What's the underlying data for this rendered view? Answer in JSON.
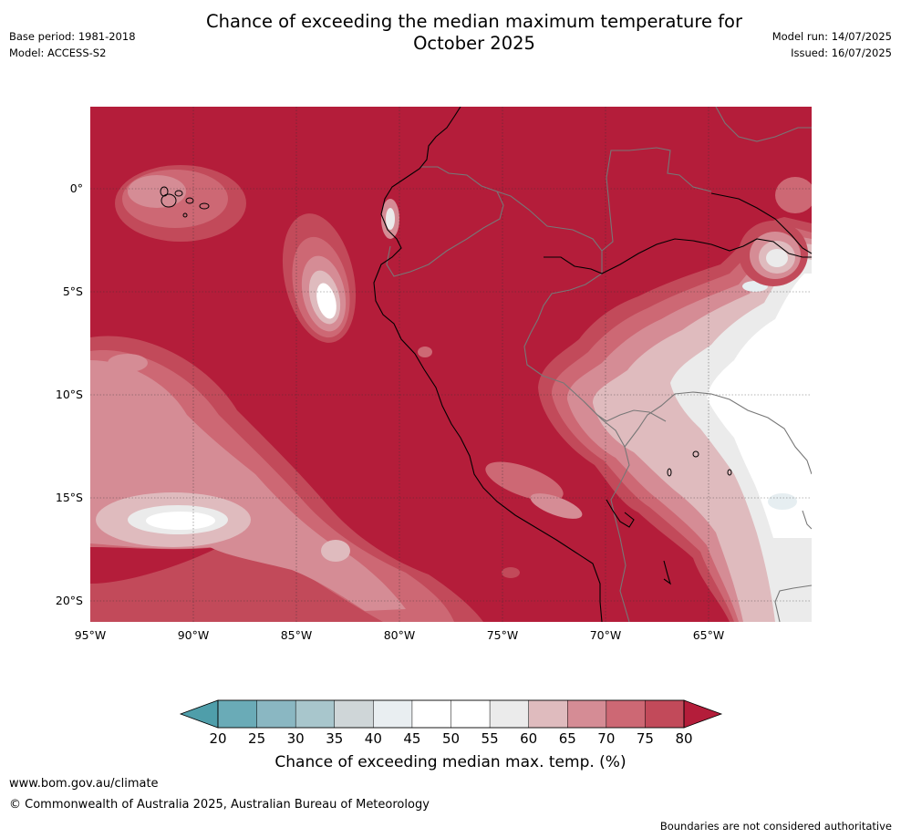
{
  "header": {
    "title_line1": "Chance of exceeding the median maximum temperature for",
    "title_line2": "October 2025",
    "base_period": "Base period: 1981-2018",
    "model": "Model: ACCESS-S2",
    "model_run": "Model run: 14/07/2025",
    "issued": "Issued: 16/07/2025"
  },
  "map": {
    "lat_labels": [
      "0°",
      "5°S",
      "10°S",
      "15°S",
      "20°S"
    ],
    "lon_labels": [
      "95°W",
      "90°W",
      "85°W",
      "80°W",
      "75°W",
      "70°W",
      "65°W"
    ],
    "lat_range": [
      -21.1,
      3.9
    ],
    "lon_range": [
      -95,
      -60
    ],
    "gridlines": true,
    "dominant_category": "80+",
    "colors": {
      "c80plus": "#b41d3a",
      "c75_80": "#c24a5a",
      "c70_75": "#cd6874",
      "c65_70": "#d58c95",
      "c60_65": "#dfbbbe",
      "c55_60": "#ebebeb",
      "c45_55": "#ffffff",
      "c40_45": "#e6eef1",
      "coast": "#000000",
      "border": "#777777"
    }
  },
  "colorbar": {
    "ticks": [
      "20",
      "25",
      "30",
      "35",
      "40",
      "45",
      "50",
      "55",
      "60",
      "65",
      "70",
      "75",
      "80"
    ],
    "colors": [
      "#6aabb7",
      "#8ab7c2",
      "#a8c6cc",
      "#cfd6d8",
      "#e9eef1",
      "#ffffff",
      "#ffffff",
      "#ebebeb",
      "#dfbbbe",
      "#d58c95",
      "#cd6874",
      "#c24a5a"
    ],
    "under_color": "#4f9eaa",
    "over_color": "#b41d3a",
    "label": "Chance of exceeding median max. temp. (%)"
  },
  "footer": {
    "url": "www.bom.gov.au/climate",
    "copyright": "© Commonwealth of Australia 2025, Australian Bureau of Meteorology",
    "disclaimer": "Boundaries are not considered authoritative"
  }
}
